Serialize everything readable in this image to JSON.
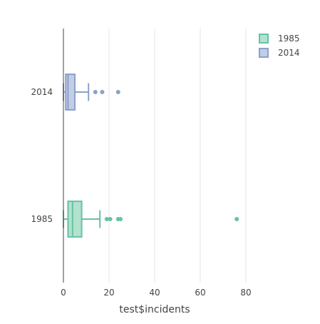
{
  "chart_data": {
    "type": "box",
    "orientation": "horizontal",
    "xlabel": "test$incidents",
    "ylabel": "",
    "xlim": [
      0,
      80
    ],
    "x_ticks": [
      0,
      20,
      40,
      60,
      80
    ],
    "x_tick_labels": [
      "0",
      "20",
      "40",
      "60",
      "80"
    ],
    "categories": [
      "1985",
      "2014"
    ],
    "grid": "vertical",
    "legend_position": "top-right",
    "series": [
      {
        "name": "1985",
        "color": "#66c2a5",
        "fill": "#b3e2cd",
        "category": "1985",
        "whisker_low": 0,
        "q1": 2,
        "median": 4,
        "q3": 8,
        "whisker_high": 16,
        "outliers": [
          19,
          20.5,
          24,
          25,
          76
        ]
      },
      {
        "name": "2014",
        "color": "#8da0cb",
        "fill": "#c3cde6",
        "category": "2014",
        "whisker_low": 0,
        "q1": 1,
        "median": 2,
        "q3": 5,
        "whisker_high": 11,
        "outliers": [
          14,
          17,
          24
        ]
      }
    ]
  }
}
